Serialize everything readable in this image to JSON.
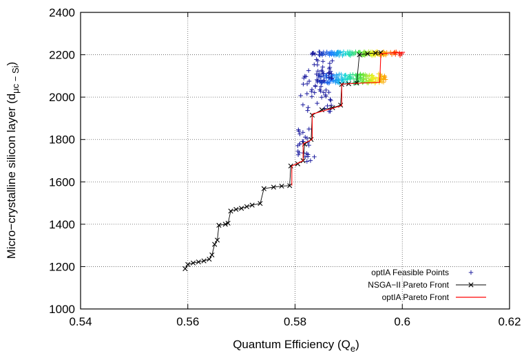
{
  "chart_data": {
    "type": "scatter",
    "xlabel": {
      "main": "Quantum Efficiency (Q",
      "sub": "e",
      "close": ")"
    },
    "ylabel": {
      "main": "Micro−crystalline silicon layer (d",
      "sub": "μc − Si",
      "close": ")"
    },
    "xlim": [
      0.54,
      0.62
    ],
    "ylim": [
      1000,
      2400
    ],
    "xticks": [
      "0.54",
      "0.56",
      "0.58",
      "0.6",
      "0.62"
    ],
    "yticks": [
      "1000",
      "1200",
      "1400",
      "1600",
      "1800",
      "2000",
      "2200",
      "2400"
    ],
    "grid": true,
    "legend_position": "bottom-right",
    "series": [
      {
        "name": "optIA Feasible Points",
        "marker": "+",
        "color": "#1c1c9e",
        "clusters": [
          {
            "x_range": [
              0.583,
              0.6
            ],
            "y_range": [
              2195,
              2215
            ],
            "count": 130
          },
          {
            "x_range": [
              0.584,
              0.597
            ],
            "y_range": [
              2065,
              2110
            ],
            "count": 160
          },
          {
            "x_range": [
              0.581,
              0.587
            ],
            "y_range": [
              1930,
              2180
            ],
            "count": 60
          },
          {
            "x_range": [
              0.5805,
              0.584
            ],
            "y_range": [
              1690,
              1860
            ],
            "count": 25
          }
        ],
        "gradient": [
          "#1c1c9e",
          "#1f7bff",
          "#14d8d8",
          "#40e040",
          "#f0f020",
          "#ff8c00",
          "#ff0000"
        ]
      },
      {
        "name": "NSGA−II Pareto Front",
        "marker": "x",
        "color": "#000000",
        "points": [
          [
            0.5595,
            1190
          ],
          [
            0.56,
            1210
          ],
          [
            0.561,
            1217
          ],
          [
            0.562,
            1222
          ],
          [
            0.563,
            1227
          ],
          [
            0.564,
            1235
          ],
          [
            0.5645,
            1255
          ],
          [
            0.565,
            1305
          ],
          [
            0.5655,
            1325
          ],
          [
            0.5658,
            1395
          ],
          [
            0.567,
            1400
          ],
          [
            0.5675,
            1405
          ],
          [
            0.568,
            1462
          ],
          [
            0.569,
            1470
          ],
          [
            0.57,
            1475
          ],
          [
            0.571,
            1483
          ],
          [
            0.572,
            1490
          ],
          [
            0.5735,
            1498
          ],
          [
            0.5742,
            1568
          ],
          [
            0.576,
            1575
          ],
          [
            0.5775,
            1580
          ],
          [
            0.579,
            1582
          ],
          [
            0.5792,
            1675
          ],
          [
            0.5805,
            1685
          ],
          [
            0.5815,
            1700
          ],
          [
            0.5818,
            1778
          ],
          [
            0.583,
            1800
          ],
          [
            0.5832,
            1915
          ],
          [
            0.585,
            1940
          ],
          [
            0.587,
            1950
          ],
          [
            0.5885,
            1962
          ],
          [
            0.5887,
            2060
          ],
          [
            0.59,
            2063
          ],
          [
            0.5915,
            2067
          ],
          [
            0.592,
            2200
          ],
          [
            0.5935,
            2205
          ],
          [
            0.595,
            2208
          ],
          [
            0.596,
            2210
          ]
        ]
      },
      {
        "name": "optIA Pareto Front",
        "marker": "line",
        "color": "#ff0000",
        "points": [
          [
            0.5794,
            1582
          ],
          [
            0.5794,
            1675
          ],
          [
            0.5815,
            1700
          ],
          [
            0.5815,
            1780
          ],
          [
            0.5832,
            1800
          ],
          [
            0.5832,
            1920
          ],
          [
            0.5887,
            1960
          ],
          [
            0.5887,
            2062
          ],
          [
            0.5958,
            2070
          ],
          [
            0.596,
            2205
          ],
          [
            0.6005,
            2212
          ]
        ]
      }
    ]
  }
}
